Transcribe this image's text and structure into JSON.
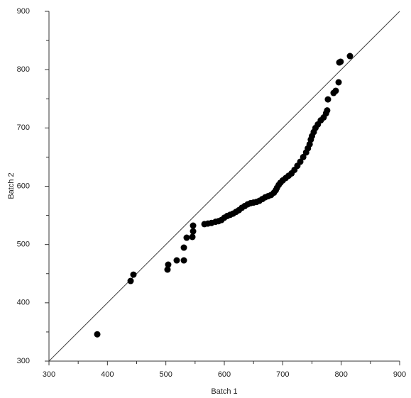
{
  "chart_data": {
    "type": "scatter",
    "x_label": "Batch 1",
    "y_label": "Batch 2",
    "color": "#000000",
    "identity_line": true,
    "xlim": [
      300,
      900
    ],
    "ylim": [
      300,
      900
    ],
    "xticks": [
      300,
      400,
      500,
      600,
      700,
      800,
      900
    ],
    "yticks": [
      300,
      400,
      500,
      600,
      700,
      800,
      900
    ],
    "xminorticks": [
      350,
      450,
      550,
      650,
      750,
      850
    ],
    "yminorticks": [
      350,
      450,
      550,
      650,
      750,
      850
    ],
    "x": [
      382.6,
      439.7,
      444.5,
      502.8,
      504,
      518.6,
      530.8,
      530.8,
      535.6,
      545.4,
      546.6,
      546.6,
      566,
      572,
      578,
      585,
      590,
      595,
      600,
      605,
      610,
      615,
      620,
      625,
      630,
      635,
      640,
      645,
      650,
      655,
      660,
      665,
      670,
      675,
      680,
      685,
      688,
      690,
      693,
      696,
      700,
      705,
      710,
      715,
      720,
      725,
      730,
      735,
      740,
      743,
      746,
      748,
      750,
      753,
      756,
      760,
      765,
      770,
      774,
      776,
      777.3,
      787,
      790.7,
      795.6,
      796.8,
      799,
      815
    ],
    "y": [
      346,
      437.5,
      448.4,
      457,
      465.5,
      472.8,
      472.8,
      494.7,
      511.7,
      513,
      522.7,
      532.4,
      535,
      536,
      537,
      539,
      540,
      542,
      546,
      549,
      551,
      553,
      556,
      559,
      563,
      566,
      569,
      571,
      572,
      573,
      575,
      578,
      581,
      583,
      585,
      589,
      593,
      597,
      602,
      606,
      610,
      614,
      618,
      622,
      628,
      635,
      642,
      650,
      658,
      665,
      672,
      680,
      686,
      693,
      700,
      706,
      713,
      718,
      725,
      730,
      749,
      760,
      763.7,
      778.3,
      812.3,
      813.6,
      823.3
    ]
  }
}
